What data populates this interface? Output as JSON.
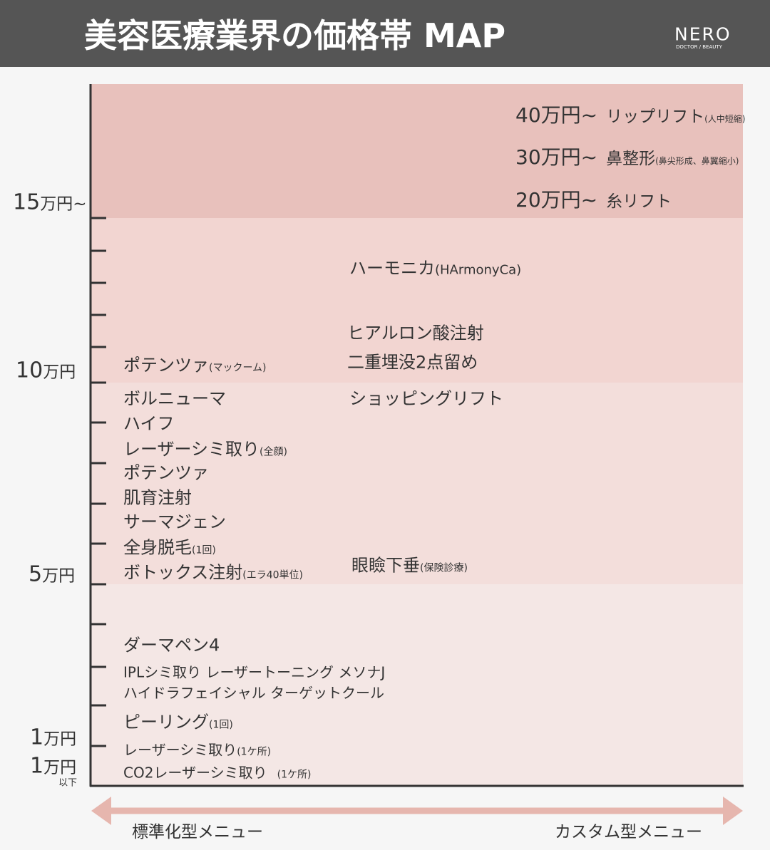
{
  "header": {
    "title": "美容医療業界の価格帯 MAP",
    "logo": "NERO",
    "logo_sub": "DOCTOR / BEAUTY"
  },
  "y_axis": [
    {
      "amount": "15",
      "unit": "万円~"
    },
    {
      "amount": "10",
      "unit": "万円"
    },
    {
      "amount": "5",
      "unit": "万円"
    },
    {
      "amount": "1",
      "unit": "万円"
    },
    {
      "amount": "1",
      "unit": "万円",
      "sub": "以下"
    }
  ],
  "top_items": [
    {
      "price": "40万円~",
      "label": "リップリフト",
      "note": "(人中短縮)"
    },
    {
      "price": "30万円~",
      "label": "鼻整形",
      "note": "(鼻尖形成、鼻翼縮小)"
    },
    {
      "price": "20万円~",
      "label": "糸リフト"
    }
  ],
  "items": [
    {
      "label": "ハーモニカ",
      "note": "(HArmonyCa)"
    },
    {
      "label": "ヒアルロン酸注射"
    },
    {
      "label": "二重埋没2点留め"
    },
    {
      "label": "ショッピングリフト"
    },
    {
      "label": "眼瞼下垂",
      "note": "(保険診療)"
    },
    {
      "label": "ポテンツァ",
      "note": "(マックーム)"
    },
    {
      "label": "ボルニューマ"
    },
    {
      "label": "ハイフ"
    },
    {
      "label": "レーザーシミ取り",
      "note": "(全顔)"
    },
    {
      "label": "ポテンツァ"
    },
    {
      "label": "肌育注射"
    },
    {
      "label": "サーマジェン"
    },
    {
      "label": "全身脱毛",
      "note": "(1回)"
    },
    {
      "label": "ボトックス注射",
      "note": "(エラ40単位)"
    },
    {
      "label": "ダーマペン4"
    },
    {
      "label": "IPLシミ取り レーザートーニング メソナJ"
    },
    {
      "label": "ハイドラフェイシャル ターゲットクール"
    },
    {
      "label": "ピーリング",
      "note": "(1回)"
    },
    {
      "label": "レーザーシミ取り",
      "note": "(1ケ所)"
    },
    {
      "label": "CO2レーザーシミ取り",
      "note": "(1ケ所)"
    }
  ],
  "x_axis": {
    "left": "標準化型メニュー",
    "right": "カスタム型メニュー"
  }
}
